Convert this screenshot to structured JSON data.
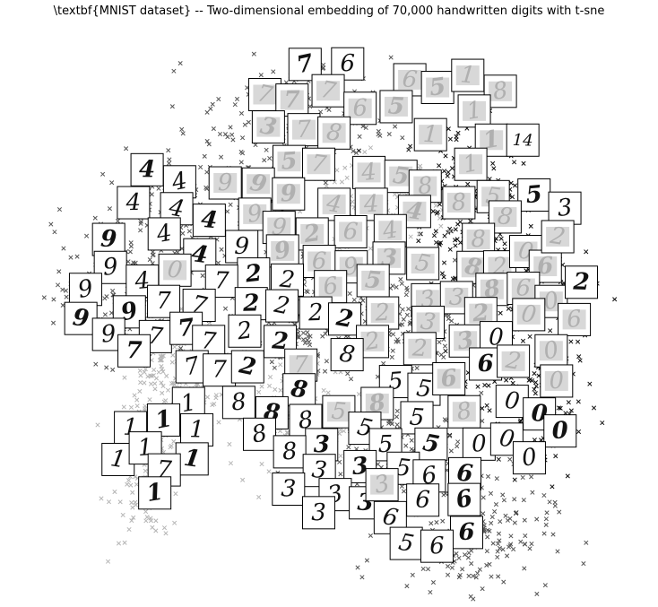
{
  "chart_data": {
    "type": "scatter",
    "title": "\\textbf{MNIST dataset} -- Two-dimensional embedding of 70,000 handwritten digits with t-sne",
    "xlabel": "",
    "ylabel": "",
    "xlim": [
      0,
      100
    ],
    "ylim": [
      0,
      100
    ],
    "grid": false,
    "axes_visible": false,
    "legend": "none",
    "marker": "x",
    "colors": {
      "dark": "#111111",
      "mid": "#555555",
      "light": "#b5b5b5",
      "thumb_border": "#000000",
      "thumb_ink": "#111111",
      "thumb_blur": "#b0b0b0"
    },
    "clusters": [
      {
        "digit": "0",
        "center": [
          83,
          34
        ],
        "spread": [
          6,
          8
        ],
        "shade": "dark"
      },
      {
        "digit": "1",
        "center": [
          72,
          71
        ],
        "spread": [
          5,
          7
        ],
        "shade": "dark"
      },
      {
        "digit": "1",
        "center": [
          19,
          22
        ],
        "spread": [
          3,
          7
        ],
        "shade": "light"
      },
      {
        "digit": "2",
        "center": [
          42,
          48
        ],
        "spread": [
          8,
          5
        ],
        "shade": "mid"
      },
      {
        "digit": "3",
        "center": [
          61,
          49
        ],
        "spread": [
          7,
          5
        ],
        "shade": "mid"
      },
      {
        "digit": "4",
        "center": [
          28,
          66
        ],
        "spread": [
          8,
          6
        ],
        "shade": "mid"
      },
      {
        "digit": "4",
        "center": [
          58,
          70
        ],
        "spread": [
          6,
          4
        ],
        "shade": "light"
      },
      {
        "digit": "5",
        "center": [
          62,
          24
        ],
        "spread": [
          8,
          6
        ],
        "shade": "mid"
      },
      {
        "digit": "6",
        "center": [
          73,
          9
        ],
        "spread": [
          7,
          5
        ],
        "shade": "mid"
      },
      {
        "digit": "7",
        "center": [
          44,
          84
        ],
        "spread": [
          8,
          6
        ],
        "shade": "mid"
      },
      {
        "digit": "7",
        "center": [
          24,
          40
        ],
        "spread": [
          5,
          6
        ],
        "shade": "light"
      },
      {
        "digit": "8",
        "center": [
          44,
          31
        ],
        "spread": [
          6,
          5
        ],
        "shade": "light"
      },
      {
        "digit": "8",
        "center": [
          78,
          57
        ],
        "spread": [
          6,
          5
        ],
        "shade": "dark"
      },
      {
        "digit": "9",
        "center": [
          15,
          53
        ],
        "spread": [
          6,
          6
        ],
        "shade": "mid"
      }
    ],
    "thumbnails": [
      {
        "d": "7",
        "x": 45.5,
        "y": 94.8,
        "s": "ink"
      },
      {
        "d": "6",
        "x": 52.7,
        "y": 94.9,
        "s": "ink"
      },
      {
        "d": "7",
        "x": 38.7,
        "y": 89.3,
        "s": "blur"
      },
      {
        "d": "7",
        "x": 43.3,
        "y": 88.3,
        "s": "blur"
      },
      {
        "d": "7",
        "x": 49.4,
        "y": 90.0,
        "s": "blur"
      },
      {
        "d": "6",
        "x": 54.8,
        "y": 86.8,
        "s": "blur"
      },
      {
        "d": "3",
        "x": 39.3,
        "y": 83.4,
        "s": "blur"
      },
      {
        "d": "7",
        "x": 45.3,
        "y": 82.9,
        "s": "blur"
      },
      {
        "d": "8",
        "x": 50.4,
        "y": 82.3,
        "s": "blur"
      },
      {
        "d": "5",
        "x": 42.8,
        "y": 77.1,
        "s": "blur"
      },
      {
        "d": "7",
        "x": 47.8,
        "y": 76.6,
        "s": "blur"
      },
      {
        "d": "4",
        "x": 56.3,
        "y": 75.1,
        "s": "blur"
      },
      {
        "d": "5",
        "x": 61.7,
        "y": 74.4,
        "s": "blur"
      },
      {
        "d": "8",
        "x": 65.8,
        "y": 72.6,
        "s": "blur"
      },
      {
        "d": "6",
        "x": 63.2,
        "y": 92.0,
        "s": "blur"
      },
      {
        "d": "5",
        "x": 67.9,
        "y": 90.6,
        "s": "blur"
      },
      {
        "d": "1",
        "x": 73.0,
        "y": 92.8,
        "s": "blur"
      },
      {
        "d": "8",
        "x": 78.5,
        "y": 89.9,
        "s": "blur"
      },
      {
        "d": "5",
        "x": 60.9,
        "y": 87.1,
        "s": "blur"
      },
      {
        "d": "1",
        "x": 74.1,
        "y": 86.3,
        "s": "blur"
      },
      {
        "d": "1",
        "x": 66.7,
        "y": 82.0,
        "s": "blur"
      },
      {
        "d": "1",
        "x": 77.0,
        "y": 81.0,
        "s": "blur"
      },
      {
        "d": "14",
        "x": 82.3,
        "y": 81.0,
        "s": "ink"
      },
      {
        "d": "1",
        "x": 73.5,
        "y": 76.6,
        "s": "blur"
      },
      {
        "d": "4",
        "x": 18.8,
        "y": 75.6,
        "s": "ink"
      },
      {
        "d": "4",
        "x": 24.3,
        "y": 73.4,
        "s": "ink"
      },
      {
        "d": "9",
        "x": 32.0,
        "y": 73.2,
        "s": "blur"
      },
      {
        "d": "9",
        "x": 37.6,
        "y": 73.0,
        "s": "blur"
      },
      {
        "d": "4",
        "x": 16.5,
        "y": 69.6,
        "s": "ink"
      },
      {
        "d": "4",
        "x": 23.8,
        "y": 68.5,
        "s": "ink"
      },
      {
        "d": "9",
        "x": 42.7,
        "y": 71.2,
        "s": "blur"
      },
      {
        "d": "4",
        "x": 50.4,
        "y": 69.3,
        "s": "blur"
      },
      {
        "d": "4",
        "x": 56.7,
        "y": 69.3,
        "s": "blur"
      },
      {
        "d": "4",
        "x": 64.0,
        "y": 68.0,
        "s": "blur"
      },
      {
        "d": "8",
        "x": 71.5,
        "y": 69.6,
        "s": "blur"
      },
      {
        "d": "5",
        "x": 77.3,
        "y": 70.7,
        "s": "blur"
      },
      {
        "d": "5",
        "x": 84.2,
        "y": 71.0,
        "s": "ink"
      },
      {
        "d": "8",
        "x": 79.3,
        "y": 67.0,
        "s": "blur"
      },
      {
        "d": "3",
        "x": 89.4,
        "y": 68.6,
        "s": "ink"
      },
      {
        "d": "4",
        "x": 29.3,
        "y": 66.4,
        "s": "ink"
      },
      {
        "d": "9",
        "x": 37.0,
        "y": 67.5,
        "s": "blur"
      },
      {
        "d": "9",
        "x": 41.1,
        "y": 65.1,
        "s": "blur"
      },
      {
        "d": "2",
        "x": 46.7,
        "y": 63.9,
        "s": "blur"
      },
      {
        "d": "6",
        "x": 53.2,
        "y": 64.3,
        "s": "blur"
      },
      {
        "d": "4",
        "x": 59.9,
        "y": 64.5,
        "s": "blur"
      },
      {
        "d": "9",
        "x": 12.3,
        "y": 62.9,
        "s": "ink"
      },
      {
        "d": "4",
        "x": 21.7,
        "y": 63.9,
        "s": "ink"
      },
      {
        "d": "9",
        "x": 34.8,
        "y": 61.6,
        "s": "ink"
      },
      {
        "d": "9",
        "x": 41.7,
        "y": 60.8,
        "s": "blur"
      },
      {
        "d": "6",
        "x": 47.9,
        "y": 58.9,
        "s": "blur"
      },
      {
        "d": "9",
        "x": 53.3,
        "y": 57.9,
        "s": "blur"
      },
      {
        "d": "3",
        "x": 59.7,
        "y": 59.5,
        "s": "blur"
      },
      {
        "d": "5",
        "x": 65.4,
        "y": 58.5,
        "s": "blur"
      },
      {
        "d": "8",
        "x": 74.8,
        "y": 62.9,
        "s": "blur"
      },
      {
        "d": "8",
        "x": 73.9,
        "y": 57.8,
        "s": "blur"
      },
      {
        "d": "2",
        "x": 78.4,
        "y": 57.9,
        "s": "blur"
      },
      {
        "d": "0",
        "x": 82.8,
        "y": 60.7,
        "s": "blur"
      },
      {
        "d": "6",
        "x": 86.1,
        "y": 58.0,
        "s": "blur"
      },
      {
        "d": "2",
        "x": 88.2,
        "y": 63.4,
        "s": "blur"
      },
      {
        "d": "9",
        "x": 12.6,
        "y": 57.8,
        "s": "ink"
      },
      {
        "d": "4",
        "x": 27.7,
        "y": 60.1,
        "s": "ink"
      },
      {
        "d": "4",
        "x": 18.0,
        "y": 55.3,
        "s": "ink"
      },
      {
        "d": "0",
        "x": 23.5,
        "y": 57.3,
        "s": "blur"
      },
      {
        "d": "2",
        "x": 36.8,
        "y": 56.6,
        "s": "ink"
      },
      {
        "d": "2",
        "x": 42.5,
        "y": 55.5,
        "s": "ink"
      },
      {
        "d": "6",
        "x": 49.8,
        "y": 54.3,
        "s": "blur"
      },
      {
        "d": "5",
        "x": 57.0,
        "y": 55.4,
        "s": "blur"
      },
      {
        "d": "3",
        "x": 66.2,
        "y": 51.9,
        "s": "blur"
      },
      {
        "d": "3",
        "x": 71.1,
        "y": 52.3,
        "s": "blur"
      },
      {
        "d": "8",
        "x": 77.1,
        "y": 53.8,
        "s": "blur"
      },
      {
        "d": "6",
        "x": 82.4,
        "y": 54.0,
        "s": "blur"
      },
      {
        "d": "0",
        "x": 87.1,
        "y": 51.6,
        "s": "blur"
      },
      {
        "d": "2",
        "x": 92.2,
        "y": 55.1,
        "s": "ink"
      },
      {
        "d": "9",
        "x": 8.4,
        "y": 53.8,
        "s": "ink"
      },
      {
        "d": "7",
        "x": 31.4,
        "y": 55.3,
        "s": "ink"
      },
      {
        "d": "9",
        "x": 15.8,
        "y": 49.7,
        "s": "ink"
      },
      {
        "d": "7",
        "x": 21.6,
        "y": 51.6,
        "s": "ink"
      },
      {
        "d": "7",
        "x": 27.6,
        "y": 50.9,
        "s": "ink"
      },
      {
        "d": "2",
        "x": 36.4,
        "y": 51.2,
        "s": "ink"
      },
      {
        "d": "2",
        "x": 41.6,
        "y": 50.8,
        "s": "ink"
      },
      {
        "d": "2",
        "x": 47.3,
        "y": 49.5,
        "s": "ink"
      },
      {
        "d": "2",
        "x": 52.2,
        "y": 48.4,
        "s": "ink"
      },
      {
        "d": "2",
        "x": 58.6,
        "y": 49.5,
        "s": "blur"
      },
      {
        "d": "3",
        "x": 66.3,
        "y": 47.8,
        "s": "blur"
      },
      {
        "d": "2",
        "x": 75.2,
        "y": 49.4,
        "s": "blur"
      },
      {
        "d": "0",
        "x": 83.3,
        "y": 49.2,
        "s": "blur"
      },
      {
        "d": "6",
        "x": 91.0,
        "y": 48.3,
        "s": "blur"
      },
      {
        "d": "9",
        "x": 7.6,
        "y": 48.5,
        "s": "ink"
      },
      {
        "d": "9",
        "x": 12.3,
        "y": 45.6,
        "s": "ink"
      },
      {
        "d": "7",
        "x": 20.2,
        "y": 45.2,
        "s": "ink"
      },
      {
        "d": "7",
        "x": 25.4,
        "y": 46.7,
        "s": "ink"
      },
      {
        "d": "7",
        "x": 29.2,
        "y": 44.3,
        "s": "ink"
      },
      {
        "d": "2",
        "x": 35.3,
        "y": 46.2,
        "s": "ink"
      },
      {
        "d": "2",
        "x": 41.3,
        "y": 44.3,
        "s": "ink"
      },
      {
        "d": "2",
        "x": 56.9,
        "y": 44.3,
        "s": "blur"
      },
      {
        "d": "2",
        "x": 64.9,
        "y": 43.0,
        "s": "blur"
      },
      {
        "d": "3",
        "x": 72.6,
        "y": 44.4,
        "s": "blur"
      },
      {
        "d": "0",
        "x": 77.8,
        "y": 45.0,
        "s": "ink"
      },
      {
        "d": "0",
        "x": 87.1,
        "y": 42.6,
        "s": "blur"
      },
      {
        "d": "7",
        "x": 16.6,
        "y": 42.6,
        "s": "ink"
      },
      {
        "d": "7",
        "x": 26.4,
        "y": 39.7,
        "s": "ink"
      },
      {
        "d": "7",
        "x": 31.0,
        "y": 39.1,
        "s": "ink"
      },
      {
        "d": "2",
        "x": 35.8,
        "y": 39.7,
        "s": "ink"
      },
      {
        "d": "7",
        "x": 44.8,
        "y": 40.0,
        "s": "blur"
      },
      {
        "d": "8",
        "x": 52.6,
        "y": 41.9,
        "s": "ink"
      },
      {
        "d": "6",
        "x": 76.0,
        "y": 40.2,
        "s": "ink"
      },
      {
        "d": "2",
        "x": 80.7,
        "y": 40.7,
        "s": "blur"
      },
      {
        "d": "0",
        "x": 88.0,
        "y": 37.1,
        "s": "blur"
      },
      {
        "d": "8",
        "x": 44.5,
        "y": 35.5,
        "s": "ink"
      },
      {
        "d": "5",
        "x": 60.8,
        "y": 37.0,
        "s": "ink"
      },
      {
        "d": "5",
        "x": 65.6,
        "y": 35.6,
        "s": "ink"
      },
      {
        "d": "6",
        "x": 69.8,
        "y": 37.5,
        "s": "blur"
      },
      {
        "d": "0",
        "x": 80.5,
        "y": 33.4,
        "s": "ink"
      },
      {
        "d": "8",
        "x": 34.3,
        "y": 33.2,
        "s": "ink"
      },
      {
        "d": "8",
        "x": 39.9,
        "y": 31.3,
        "s": "ink"
      },
      {
        "d": "8",
        "x": 45.6,
        "y": 29.9,
        "s": "ink"
      },
      {
        "d": "5",
        "x": 51.2,
        "y": 31.5,
        "s": "blur"
      },
      {
        "d": "8",
        "x": 57.7,
        "y": 33.0,
        "s": "blur"
      },
      {
        "d": "5",
        "x": 64.4,
        "y": 30.4,
        "s": "ink"
      },
      {
        "d": "8",
        "x": 72.4,
        "y": 31.5,
        "s": "blur"
      },
      {
        "d": "0",
        "x": 85.1,
        "y": 31.1,
        "s": "ink"
      },
      {
        "d": "1",
        "x": 25.8,
        "y": 33.0,
        "s": "ink"
      },
      {
        "d": "1",
        "x": 16.0,
        "y": 28.6,
        "s": "ink"
      },
      {
        "d": "1",
        "x": 21.6,
        "y": 30.0,
        "s": "ink"
      },
      {
        "d": "1",
        "x": 27.2,
        "y": 28.2,
        "s": "ink"
      },
      {
        "d": "8",
        "x": 37.8,
        "y": 27.4,
        "s": "ink"
      },
      {
        "d": "3",
        "x": 48.3,
        "y": 25.5,
        "s": "ink"
      },
      {
        "d": "5",
        "x": 55.6,
        "y": 28.5,
        "s": "ink"
      },
      {
        "d": "5",
        "x": 59.1,
        "y": 25.5,
        "s": "ink"
      },
      {
        "d": "5",
        "x": 66.8,
        "y": 25.6,
        "s": "ink"
      },
      {
        "d": "0",
        "x": 74.9,
        "y": 25.6,
        "s": "ink"
      },
      {
        "d": "0",
        "x": 79.6,
        "y": 26.5,
        "s": "ink"
      },
      {
        "d": "0",
        "x": 88.6,
        "y": 28.0,
        "s": "ink"
      },
      {
        "d": "1",
        "x": 13.9,
        "y": 22.8,
        "s": "ink"
      },
      {
        "d": "1",
        "x": 18.5,
        "y": 24.9,
        "s": "ink"
      },
      {
        "d": "1",
        "x": 26.4,
        "y": 22.9,
        "s": "ink"
      },
      {
        "d": "8",
        "x": 42.9,
        "y": 24.2,
        "s": "ink"
      },
      {
        "d": "3",
        "x": 47.9,
        "y": 20.8,
        "s": "ink"
      },
      {
        "d": "3",
        "x": 54.8,
        "y": 21.5,
        "s": "ink"
      },
      {
        "d": "5",
        "x": 62.1,
        "y": 21.2,
        "s": "ink"
      },
      {
        "d": "6",
        "x": 66.5,
        "y": 19.8,
        "s": "ink"
      },
      {
        "d": "6",
        "x": 72.5,
        "y": 20.2,
        "s": "ink"
      },
      {
        "d": "0",
        "x": 83.4,
        "y": 23.1,
        "s": "ink"
      },
      {
        "d": "7",
        "x": 21.7,
        "y": 20.9,
        "s": "ink"
      },
      {
        "d": "1",
        "x": 20.1,
        "y": 16.7,
        "s": "ink"
      },
      {
        "d": "3",
        "x": 42.7,
        "y": 17.4,
        "s": "ink"
      },
      {
        "d": "3",
        "x": 50.6,
        "y": 16.4,
        "s": "ink"
      },
      {
        "d": "3",
        "x": 55.7,
        "y": 14.9,
        "s": "ink"
      },
      {
        "d": "3",
        "x": 58.5,
        "y": 18.2,
        "s": "blur"
      },
      {
        "d": "6",
        "x": 65.4,
        "y": 15.4,
        "s": "ink"
      },
      {
        "d": "6",
        "x": 72.4,
        "y": 15.5,
        "s": "ink"
      },
      {
        "d": "3",
        "x": 47.8,
        "y": 13.1,
        "s": "ink"
      },
      {
        "d": "6",
        "x": 59.9,
        "y": 12.2,
        "s": "ink"
      },
      {
        "d": "6",
        "x": 72.8,
        "y": 9.5,
        "s": "ink"
      },
      {
        "d": "5",
        "x": 62.6,
        "y": 7.5,
        "s": "ink"
      },
      {
        "d": "6",
        "x": 67.8,
        "y": 7.0,
        "s": "ink"
      }
    ]
  }
}
